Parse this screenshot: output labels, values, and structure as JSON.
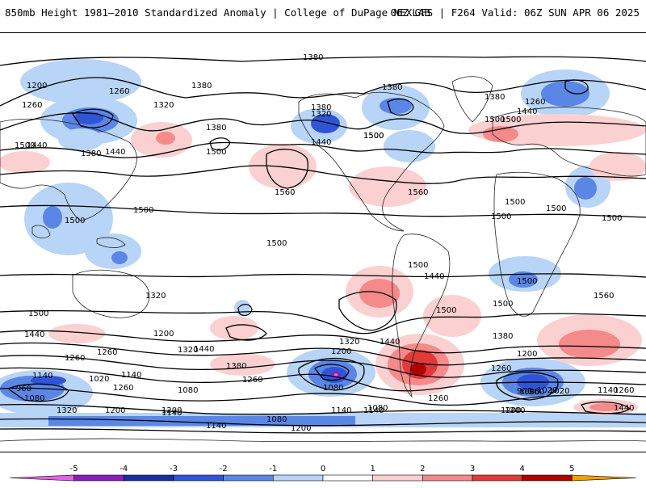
{
  "header": {
    "title": "850mb Height 1981–2010 Standardized Anomaly | College of DuPage NEXLAB",
    "valid": "06Z GFS | F264 Valid: 06Z SUN APR 06 2025"
  },
  "map": {
    "contour_labels": [
      {
        "text": "1380"
      },
      {
        "text": "1200"
      },
      {
        "text": "1260"
      },
      {
        "text": "1380"
      },
      {
        "text": "1260"
      },
      {
        "text": "1380"
      },
      {
        "text": "1320"
      },
      {
        "text": "1380"
      },
      {
        "text": "1260"
      },
      {
        "text": "1320"
      },
      {
        "text": "1380"
      },
      {
        "text": "1500"
      },
      {
        "text": "1440"
      },
      {
        "text": "1380"
      },
      {
        "text": "1440"
      },
      {
        "text": "1500"
      },
      {
        "text": "1500"
      },
      {
        "text": "1440"
      },
      {
        "text": "1500"
      },
      {
        "text": "1380"
      },
      {
        "text": "1440"
      },
      {
        "text": "1560"
      },
      {
        "text": "1560"
      },
      {
        "text": "1500"
      },
      {
        "text": "1500"
      },
      {
        "text": "1500"
      },
      {
        "text": "1500"
      },
      {
        "text": "1500"
      },
      {
        "text": "1500"
      },
      {
        "text": "1500"
      },
      {
        "text": "1500"
      },
      {
        "text": "1500"
      },
      {
        "text": "1560"
      },
      {
        "text": "1500"
      },
      {
        "text": "1500"
      },
      {
        "text": "1440"
      },
      {
        "text": "1500"
      },
      {
        "text": "1320"
      },
      {
        "text": "1500"
      },
      {
        "text": "1440"
      },
      {
        "text": "1380"
      },
      {
        "text": "1440"
      },
      {
        "text": "1260"
      },
      {
        "text": "1200"
      },
      {
        "text": "1380"
      },
      {
        "text": "1320"
      },
      {
        "text": "1200"
      },
      {
        "text": "1260"
      },
      {
        "text": "1320"
      },
      {
        "text": "1200"
      },
      {
        "text": "1440"
      },
      {
        "text": "1140"
      },
      {
        "text": "1080"
      },
      {
        "text": "1260"
      },
      {
        "text": "1140"
      },
      {
        "text": "1080"
      },
      {
        "text": "1260"
      },
      {
        "text": "1020"
      },
      {
        "text": "960"
      },
      {
        "text": "1080"
      },
      {
        "text": "1320"
      },
      {
        "text": "1200"
      },
      {
        "text": "1140"
      },
      {
        "text": "1080"
      },
      {
        "text": "1140"
      },
      {
        "text": "1200"
      },
      {
        "text": "1140"
      },
      {
        "text": "1080"
      },
      {
        "text": "960"
      },
      {
        "text": "1020"
      },
      {
        "text": "1140"
      },
      {
        "text": "1260"
      },
      {
        "text": "1200"
      },
      {
        "text": "1440"
      },
      {
        "text": "1260"
      },
      {
        "text": "1140"
      },
      {
        "text": "1200"
      },
      {
        "text": "1020"
      },
      {
        "text": "960"
      },
      {
        "text": "1080"
      },
      {
        "text": "1260"
      },
      {
        "text": "1200"
      },
      {
        "text": "1500"
      }
    ]
  },
  "colorbar": {
    "ticks": [
      "-5",
      "-4",
      "-3",
      "-2",
      "-1",
      "0",
      "1",
      "2",
      "3",
      "4",
      "5"
    ],
    "colors": [
      "#e066e0",
      "#8a1fb8",
      "#1a2fa0",
      "#2f55d6",
      "#5a86e6",
      "#b8d4f6",
      "#ffffff",
      "#fbd0d0",
      "#f48a8a",
      "#e03a3a",
      "#b00000",
      "#f0a000"
    ]
  }
}
